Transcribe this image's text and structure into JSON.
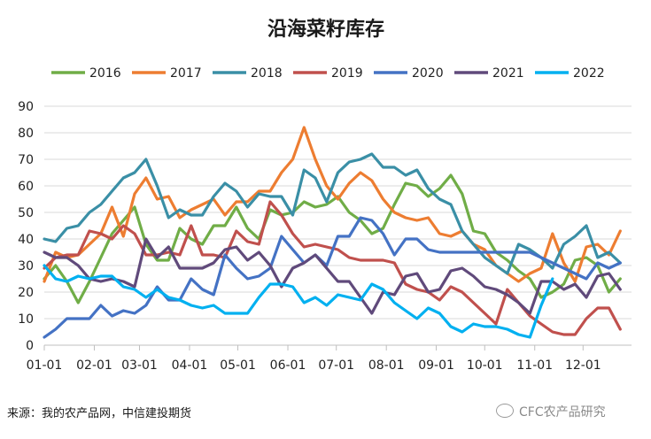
{
  "chart_data": {
    "type": "line",
    "title": "沿海菜籽库存",
    "ylim": [
      0,
      90
    ],
    "yticks": [
      0,
      10,
      20,
      30,
      40,
      50,
      60,
      70,
      80,
      90
    ],
    "xlim": [
      0,
      52
    ],
    "xticks": [
      {
        "label": "01-01",
        "week": 0
      },
      {
        "label": "02-01",
        "week": 4.43
      },
      {
        "label": "03-01",
        "week": 8.43
      },
      {
        "label": "04-01",
        "week": 12.86
      },
      {
        "label": "05-01",
        "week": 17.14
      },
      {
        "label": "06-01",
        "week": 21.57
      },
      {
        "label": "07-01",
        "week": 25.86
      },
      {
        "label": "08-01",
        "week": 30.29
      },
      {
        "label": "09-01",
        "week": 34.71
      },
      {
        "label": "10-01",
        "week": 39.0
      },
      {
        "label": "11-01",
        "week": 43.43
      },
      {
        "label": "12-01",
        "week": 47.71
      }
    ],
    "grid": true,
    "legend": "top",
    "series": [
      {
        "name": "2016",
        "color": "#70ad47",
        "values": [
          25,
          30,
          24,
          16,
          24,
          33,
          42,
          47,
          52,
          38,
          32,
          32,
          44,
          40,
          38,
          45,
          45,
          52,
          44,
          40,
          51,
          49,
          50,
          54,
          52,
          53,
          56,
          50,
          47,
          42,
          44,
          53,
          61,
          60,
          56,
          59,
          64,
          57,
          43,
          42,
          35,
          32,
          28,
          25,
          18,
          20,
          23,
          32,
          33,
          30,
          20,
          25
        ]
      },
      {
        "name": "2017",
        "color": "#ed7d31",
        "values": [
          24,
          35,
          33,
          34,
          38,
          42,
          52,
          41,
          57,
          63,
          55,
          56,
          48,
          51,
          53,
          55,
          49,
          54,
          54,
          58,
          58,
          65,
          70,
          82,
          70,
          60,
          55,
          61,
          65,
          62,
          55,
          50,
          48,
          47,
          48,
          42,
          41,
          43,
          38,
          36,
          30,
          27,
          24,
          27,
          29,
          42,
          31,
          24,
          37,
          38,
          34,
          43
        ]
      },
      {
        "name": "2018",
        "color": "#3a8fa6",
        "values": [
          40,
          39,
          44,
          45,
          50,
          53,
          58,
          63,
          65,
          70,
          60,
          48,
          51,
          49,
          49,
          56,
          61,
          58,
          52,
          57,
          56,
          56,
          49,
          66,
          63,
          54,
          65,
          69,
          70,
          72,
          67,
          67,
          64,
          66,
          59,
          55,
          53,
          43,
          38,
          33,
          30,
          27,
          38,
          36,
          33,
          29,
          38,
          41,
          45,
          33,
          35,
          31
        ]
      },
      {
        "name": "2019",
        "color": "#c0504d",
        "values": [
          29,
          33,
          34,
          34,
          43,
          42,
          40,
          45,
          42,
          34,
          34,
          35,
          34,
          45,
          34,
          34,
          33,
          43,
          39,
          38,
          54,
          49,
          42,
          37,
          38,
          37,
          36,
          33,
          32,
          32,
          32,
          31,
          23,
          21,
          20,
          17,
          22,
          20,
          16,
          12,
          8,
          21,
          16,
          11,
          8,
          5,
          4,
          4,
          10,
          14,
          14,
          6
        ]
      },
      {
        "name": "2020",
        "color": "#4472c4",
        "values": [
          3,
          6,
          10,
          10,
          10,
          15,
          11,
          13,
          12,
          15,
          22,
          17,
          17,
          25,
          21,
          19,
          34,
          29,
          25,
          26,
          29,
          41,
          36,
          31,
          34,
          30,
          41,
          41,
          48,
          47,
          42,
          34,
          40,
          40,
          36,
          35,
          35,
          35,
          35,
          35,
          35,
          35,
          35,
          35,
          33,
          31,
          29,
          27,
          25,
          31,
          29,
          31
        ]
      },
      {
        "name": "2021",
        "color": "#604a7b",
        "values": [
          35,
          33,
          33,
          30,
          25,
          24,
          25,
          24,
          22,
          40,
          33,
          37,
          29,
          29,
          29,
          31,
          36,
          37,
          32,
          35,
          30,
          22,
          29,
          31,
          34,
          29,
          24,
          24,
          18,
          12,
          20,
          19,
          26,
          27,
          20,
          21,
          28,
          29,
          26,
          22,
          21,
          19,
          16,
          12,
          24,
          24,
          21,
          23,
          18,
          26,
          27,
          21
        ]
      },
      {
        "name": "2022",
        "color": "#00b0f0",
        "values": [
          30,
          25,
          24,
          26,
          25,
          26,
          26,
          22,
          21,
          18,
          21,
          18,
          17,
          15,
          14,
          15,
          12,
          12,
          12,
          18,
          23,
          23,
          22,
          16,
          18,
          15,
          19,
          18,
          17,
          23,
          21,
          16,
          13,
          10,
          14,
          12,
          7,
          5,
          8,
          7,
          7,
          6,
          4,
          3,
          15,
          25
        ]
      }
    ]
  },
  "source_text": "来源：我的农产品网，中信建投期货",
  "watermark_text": "CFC农产品研究"
}
